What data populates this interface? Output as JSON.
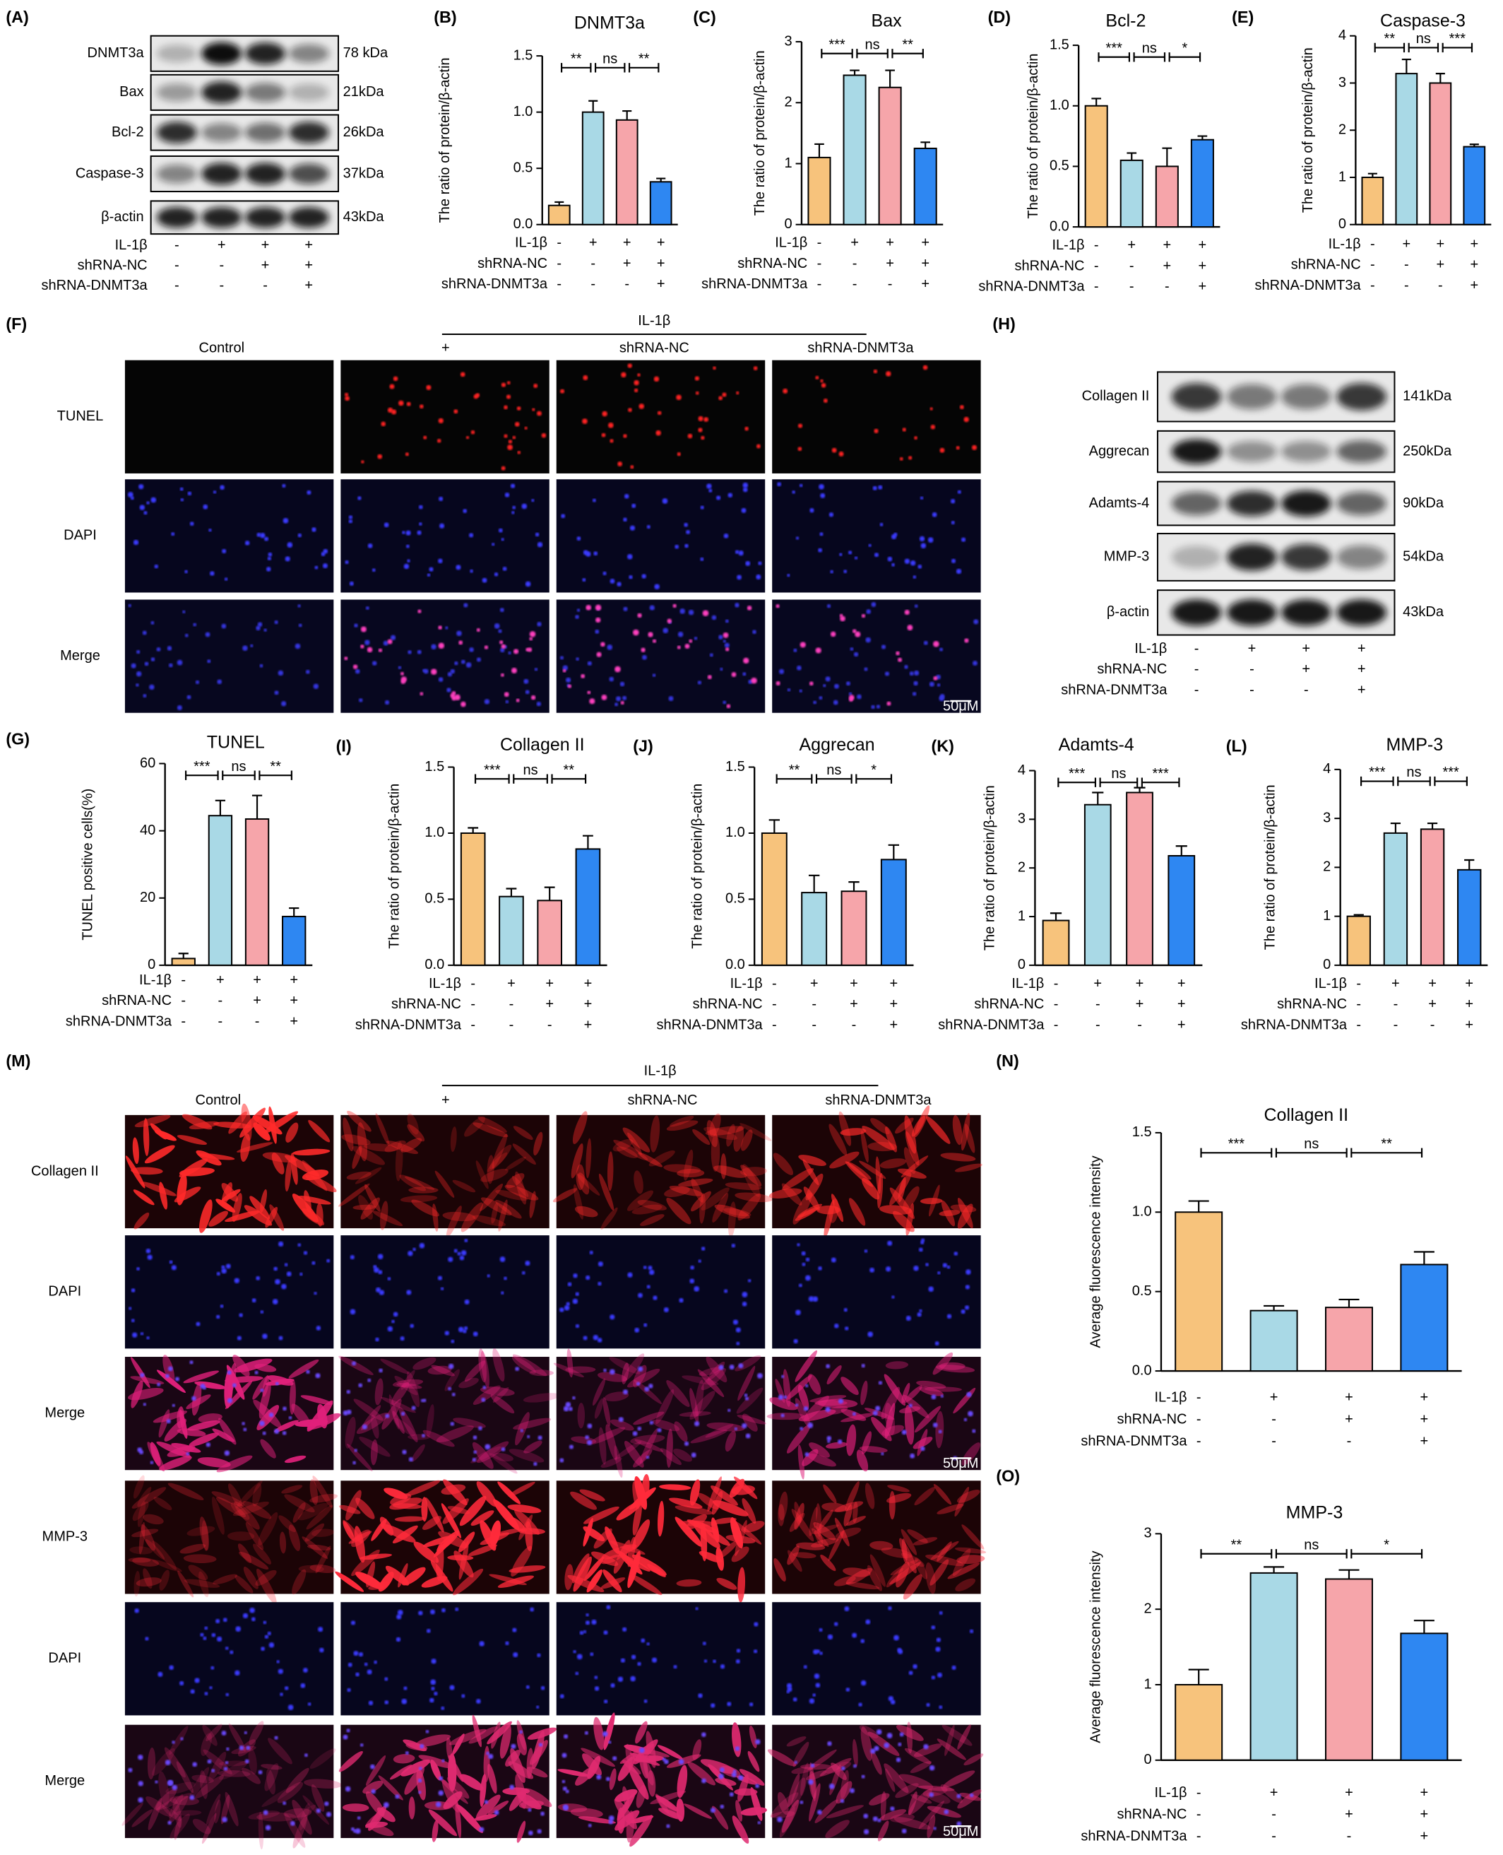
{
  "figure": {
    "blots": [
      {
        "label": "(A)",
        "rows": [
          {
            "name": "DNMT3a",
            "size": "78 kDa"
          },
          {
            "name": "Bax",
            "size": "21kDa"
          },
          {
            "name": "Bcl-2",
            "size": "26kDa"
          },
          {
            "name": "Caspase-3",
            "size": "37kDa"
          },
          {
            "name": "β-actin",
            "size": "43kDa"
          }
        ],
        "conditions": [
          {
            "name": "IL-1β",
            "signs": [
              "-",
              "+",
              "+",
              "+"
            ]
          },
          {
            "name": "shRNA-NC",
            "signs": [
              "-",
              "-",
              "+",
              "+"
            ]
          },
          {
            "name": "shRNA-DNMT3a",
            "signs": [
              "-",
              "-",
              "-",
              "+"
            ]
          }
        ]
      },
      {
        "label": "(H)",
        "rows": [
          {
            "name": "Collagen II",
            "size": "141kDa"
          },
          {
            "name": "Aggrecan",
            "size": "250kDa"
          },
          {
            "name": "Adamts-4",
            "size": "90kDa"
          },
          {
            "name": "MMP-3",
            "size": "54kDa"
          },
          {
            "name": "β-actin",
            "size": "43kDa"
          }
        ],
        "conditions": [
          {
            "name": "IL-1β",
            "signs": [
              "-",
              "+",
              "+",
              "+"
            ]
          },
          {
            "name": "shRNA-NC",
            "signs": [
              "-",
              "-",
              "+",
              "+"
            ]
          },
          {
            "name": "shRNA-DNMT3a",
            "signs": [
              "-",
              "-",
              "-",
              "+"
            ]
          }
        ]
      }
    ],
    "images": [
      {
        "label": "(F)",
        "group": "IL-1β",
        "columns": [
          "Control",
          "+",
          "shRNA-NC",
          "shRNA-DNMT3a"
        ],
        "rows": [
          "TUNEL",
          "DAPI",
          "Merge"
        ],
        "scale": "50μM"
      },
      {
        "label": "(M)",
        "group": "IL-1β",
        "columns": [
          "Control",
          "+",
          "shRNA-NC",
          "shRNA-DNMT3a"
        ],
        "rows": [
          "Collagen II",
          "DAPI",
          "Merge",
          "MMP-3",
          "DAPI",
          "Merge"
        ],
        "scale": "50μM"
      }
    ]
  },
  "chart_data": [
    {
      "label": "(B)",
      "type": "bar",
      "title": "DNMT3a",
      "y_label": "The ratio of protein/β-actin",
      "values": [
        0.17,
        1.0,
        0.93,
        0.38
      ],
      "errors": [
        0.03,
        0.1,
        0.08,
        0.03
      ],
      "colors": [
        "#f7c37c",
        "#a9d9e6",
        "#f6a5aa",
        "#2e87f2"
      ],
      "ylim": [
        0,
        1.5
      ],
      "yticks": [
        {
          "value": 0,
          "label": "0.0"
        },
        0.5,
        {
          "value": 1,
          "label": "1.0"
        },
        1.5
      ],
      "significance": [
        "**",
        "ns",
        "**"
      ],
      "conditions": [
        {
          "name": "IL-1β",
          "signs": [
            "-",
            "+",
            "+",
            "+"
          ]
        },
        {
          "name": "shRNA-NC",
          "signs": [
            "-",
            "-",
            "+",
            "+"
          ]
        },
        {
          "name": "shRNA-DNMT3a",
          "signs": [
            "-",
            "-",
            "-",
            "+"
          ]
        }
      ]
    },
    {
      "label": "(C)",
      "type": "bar",
      "title": "Bax",
      "y_label": "The ratio of protein/β-actin",
      "values": [
        1.1,
        2.45,
        2.25,
        1.25
      ],
      "errors": [
        0.22,
        0.08,
        0.28,
        0.1
      ],
      "colors": [
        "#f7c37c",
        "#a9d9e6",
        "#f6a5aa",
        "#2e87f2"
      ],
      "ylim": [
        0,
        3
      ],
      "yticks": [
        0,
        1,
        2,
        3
      ],
      "significance": [
        "***",
        "ns",
        "**"
      ],
      "conditions": [
        {
          "name": "IL-1β",
          "signs": [
            "-",
            "+",
            "+",
            "+"
          ]
        },
        {
          "name": "shRNA-NC",
          "signs": [
            "-",
            "-",
            "+",
            "+"
          ]
        },
        {
          "name": "shRNA-DNMT3a",
          "signs": [
            "-",
            "-",
            "-",
            "+"
          ]
        }
      ]
    },
    {
      "label": "(D)",
      "type": "bar",
      "title": "Bcl-2",
      "y_label": "The ratio of protein/β-actin",
      "values": [
        1.0,
        0.55,
        0.5,
        0.72
      ],
      "errors": [
        0.06,
        0.06,
        0.15,
        0.03
      ],
      "colors": [
        "#f7c37c",
        "#a9d9e6",
        "#f6a5aa",
        "#2e87f2"
      ],
      "ylim": [
        0,
        1.5
      ],
      "yticks": [
        {
          "value": 0,
          "label": "0.0"
        },
        0.5,
        {
          "value": 1,
          "label": "1.0"
        },
        1.5
      ],
      "significance": [
        "***",
        "ns",
        "*"
      ],
      "conditions": [
        {
          "name": "IL-1β",
          "signs": [
            "-",
            "+",
            "+",
            "+"
          ]
        },
        {
          "name": "shRNA-NC",
          "signs": [
            "-",
            "-",
            "+",
            "+"
          ]
        },
        {
          "name": "shRNA-DNMT3a",
          "signs": [
            "-",
            "-",
            "-",
            "+"
          ]
        }
      ]
    },
    {
      "label": "(E)",
      "type": "bar",
      "title": "Caspase-3",
      "y_label": "The ratio of protein/β-actin",
      "values": [
        1.0,
        3.2,
        3.0,
        1.65
      ],
      "errors": [
        0.08,
        0.3,
        0.2,
        0.05
      ],
      "colors": [
        "#f7c37c",
        "#a9d9e6",
        "#f6a5aa",
        "#2e87f2"
      ],
      "ylim": [
        0,
        4
      ],
      "yticks": [
        0,
        1,
        2,
        3,
        4
      ],
      "significance": [
        "**",
        "ns",
        "***"
      ],
      "conditions": [
        {
          "name": "IL-1β",
          "signs": [
            "-",
            "+",
            "+",
            "+"
          ]
        },
        {
          "name": "shRNA-NC",
          "signs": [
            "-",
            "-",
            "+",
            "+"
          ]
        },
        {
          "name": "shRNA-DNMT3a",
          "signs": [
            "-",
            "-",
            "-",
            "+"
          ]
        }
      ]
    },
    {
      "label": "(G)",
      "type": "bar",
      "title": "TUNEL",
      "y_label": "TUNEL positive cells(%)",
      "values": [
        2,
        44.5,
        43.5,
        14.5
      ],
      "errors": [
        1.5,
        4.5,
        7,
        2.5
      ],
      "colors": [
        "#f7c37c",
        "#a9d9e6",
        "#f6a5aa",
        "#2e87f2"
      ],
      "ylim": [
        0,
        60
      ],
      "yticks": [
        0,
        20,
        40,
        60
      ],
      "significance": [
        "***",
        "ns",
        "**"
      ],
      "conditions": [
        {
          "name": "IL-1β",
          "signs": [
            "-",
            "+",
            "+",
            "+"
          ]
        },
        {
          "name": "shRNA-NC",
          "signs": [
            "-",
            "-",
            "+",
            "+"
          ]
        },
        {
          "name": "shRNA-DNMT3a",
          "signs": [
            "-",
            "-",
            "-",
            "+"
          ]
        }
      ]
    },
    {
      "label": "(I)",
      "type": "bar",
      "title": "Collagen II",
      "y_label": "The ratio of protein/β-actin",
      "values": [
        1.0,
        0.52,
        0.49,
        0.88
      ],
      "errors": [
        0.04,
        0.06,
        0.1,
        0.1
      ],
      "colors": [
        "#f7c37c",
        "#a9d9e6",
        "#f6a5aa",
        "#2e87f2"
      ],
      "ylim": [
        0,
        1.5
      ],
      "yticks": [
        {
          "value": 0,
          "label": "0.0"
        },
        0.5,
        {
          "value": 1,
          "label": "1.0"
        },
        1.5
      ],
      "significance": [
        "***",
        "ns",
        "**"
      ],
      "conditions": [
        {
          "name": "IL-1β",
          "signs": [
            "-",
            "+",
            "+",
            "+"
          ]
        },
        {
          "name": "shRNA-NC",
          "signs": [
            "-",
            "-",
            "+",
            "+"
          ]
        },
        {
          "name": "shRNA-DNMT3a",
          "signs": [
            "-",
            "-",
            "-",
            "+"
          ]
        }
      ]
    },
    {
      "label": "(J)",
      "type": "bar",
      "title": "Aggrecan",
      "y_label": "The ratio of protein/β-actin",
      "values": [
        1.0,
        0.55,
        0.56,
        0.8
      ],
      "errors": [
        0.1,
        0.13,
        0.07,
        0.11
      ],
      "colors": [
        "#f7c37c",
        "#a9d9e6",
        "#f6a5aa",
        "#2e87f2"
      ],
      "ylim": [
        0,
        1.5
      ],
      "yticks": [
        {
          "value": 0,
          "label": "0.0"
        },
        0.5,
        {
          "value": 1,
          "label": "1.0"
        },
        1.5
      ],
      "significance": [
        "**",
        "ns",
        "*"
      ],
      "conditions": [
        {
          "name": "IL-1β",
          "signs": [
            "-",
            "+",
            "+",
            "+"
          ]
        },
        {
          "name": "shRNA-NC",
          "signs": [
            "-",
            "-",
            "+",
            "+"
          ]
        },
        {
          "name": "shRNA-DNMT3a",
          "signs": [
            "-",
            "-",
            "-",
            "+"
          ]
        }
      ]
    },
    {
      "label": "(K)",
      "type": "bar",
      "title": "Adamts-4",
      "y_label": "The ratio of protein/β-actin",
      "values": [
        0.92,
        3.3,
        3.55,
        2.25
      ],
      "errors": [
        0.15,
        0.25,
        0.1,
        0.2
      ],
      "colors": [
        "#f7c37c",
        "#a9d9e6",
        "#f6a5aa",
        "#2e87f2"
      ],
      "ylim": [
        0,
        4
      ],
      "yticks": [
        0,
        1,
        2,
        3,
        4
      ],
      "significance": [
        "***",
        "ns",
        "***"
      ],
      "conditions": [
        {
          "name": "IL-1β",
          "signs": [
            "-",
            "+",
            "+",
            "+"
          ]
        },
        {
          "name": "shRNA-NC",
          "signs": [
            "-",
            "-",
            "+",
            "+"
          ]
        },
        {
          "name": "shRNA-DNMT3a",
          "signs": [
            "-",
            "-",
            "-",
            "+"
          ]
        }
      ]
    },
    {
      "label": "(L)",
      "type": "bar",
      "title": "MMP-3",
      "y_label": "The ratio of protein/β-actin",
      "values": [
        1.0,
        2.7,
        2.78,
        1.95
      ],
      "errors": [
        0.03,
        0.2,
        0.12,
        0.2
      ],
      "colors": [
        "#f7c37c",
        "#a9d9e6",
        "#f6a5aa",
        "#2e87f2"
      ],
      "ylim": [
        0,
        4
      ],
      "yticks": [
        0,
        1,
        2,
        3,
        4
      ],
      "significance": [
        "***",
        "ns",
        "***"
      ],
      "conditions": [
        {
          "name": "IL-1β",
          "signs": [
            "-",
            "+",
            "+",
            "+"
          ]
        },
        {
          "name": "shRNA-NC",
          "signs": [
            "-",
            "-",
            "+",
            "+"
          ]
        },
        {
          "name": "shRNA-DNMT3a",
          "signs": [
            "-",
            "-",
            "-",
            "+"
          ]
        }
      ]
    },
    {
      "label": "(N)",
      "type": "bar",
      "title": "Collagen II",
      "y_label": "Average fluorescence intensity",
      "values": [
        1.0,
        0.38,
        0.4,
        0.67
      ],
      "errors": [
        0.07,
        0.03,
        0.05,
        0.08
      ],
      "colors": [
        "#f7c37c",
        "#a9d9e6",
        "#f6a5aa",
        "#2e87f2"
      ],
      "ylim": [
        0,
        1.5
      ],
      "yticks": [
        {
          "value": 0,
          "label": "0.0"
        },
        0.5,
        {
          "value": 1,
          "label": "1.0"
        },
        1.5
      ],
      "significance": [
        "***",
        "ns",
        "**"
      ],
      "conditions": [
        {
          "name": "IL-1β",
          "signs": [
            "-",
            "+",
            "+",
            "+"
          ]
        },
        {
          "name": "shRNA-NC",
          "signs": [
            "-",
            "-",
            "+",
            "+"
          ]
        },
        {
          "name": "shRNA-DNMT3a",
          "signs": [
            "-",
            "-",
            "-",
            "+"
          ]
        }
      ]
    },
    {
      "label": "(O)",
      "type": "bar",
      "title": "MMP-3",
      "y_label": "Average fluorescence intensity",
      "values": [
        1.0,
        2.48,
        2.4,
        1.68
      ],
      "errors": [
        0.2,
        0.08,
        0.12,
        0.17
      ],
      "colors": [
        "#f7c37c",
        "#a9d9e6",
        "#f6a5aa",
        "#2e87f2"
      ],
      "ylim": [
        0,
        3
      ],
      "yticks": [
        0,
        1,
        2,
        3
      ],
      "significance": [
        "**",
        "ns",
        "*"
      ],
      "conditions": [
        {
          "name": "IL-1β",
          "signs": [
            "-",
            "+",
            "+",
            "+"
          ]
        },
        {
          "name": "shRNA-NC",
          "signs": [
            "-",
            "-",
            "+",
            "+"
          ]
        },
        {
          "name": "shRNA-DNMT3a",
          "signs": [
            "-",
            "-",
            "-",
            "+"
          ]
        }
      ]
    }
  ]
}
